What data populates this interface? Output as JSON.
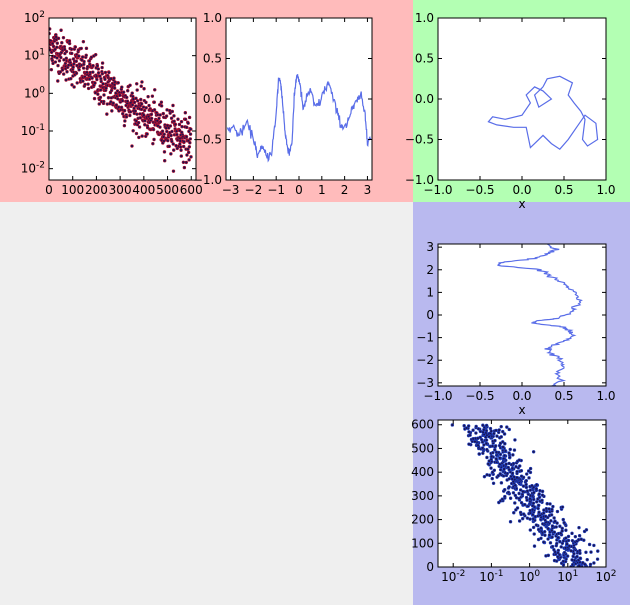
{
  "colors": {
    "panel_red": "#ffbbbb",
    "panel_green": "#b3ffb3",
    "panel_blue": "#b9b9ef",
    "background": "#efefef",
    "series_line": "#5a6ee8",
    "scatter_fill": "#1a1450",
    "scatter_edge_red": "#b01030",
    "scatter_edge_blue": "#2040c0"
  },
  "chart_data": [
    {
      "id": "scatter-log-y",
      "type": "scatter",
      "title": "",
      "xlabel": "",
      "ylabel": "",
      "xlim": [
        0,
        620
      ],
      "ylim": [
        0.005,
        100
      ],
      "yscale": "log",
      "x_ticks": [
        "0",
        "100",
        "200",
        "300",
        "400",
        "500",
        "600"
      ],
      "y_ticks": [
        "10^-2",
        "10^-1",
        "10^0",
        "10^1",
        "10^2"
      ],
      "description_of_trend": "y decays roughly exponentially with x",
      "curve": {
        "y_at_x0": 20,
        "decay_per_unit_x": 0.011,
        "floor": 0.03
      },
      "n_points": 600
    },
    {
      "id": "line-noisy",
      "type": "line",
      "title": "",
      "xlabel": "",
      "ylabel": "",
      "xlim": [
        -3.2,
        3.2
      ],
      "ylim": [
        -1.0,
        1.0
      ],
      "x_ticks": [
        "−3",
        "−2",
        "−1",
        "0",
        "1",
        "2",
        "3"
      ],
      "y_ticks": [
        "−1.0",
        "−0.5",
        "0.0",
        "0.5",
        "1.0"
      ],
      "x": [
        -3.14,
        -2.9,
        -2.6,
        -2.3,
        -2.0,
        -1.8,
        -1.6,
        -1.4,
        -1.2,
        -1.0,
        -0.9,
        -0.8,
        -0.7,
        -0.6,
        -0.5,
        -0.4,
        -0.3,
        -0.2,
        -0.1,
        0.0,
        0.1,
        0.2,
        0.35,
        0.5,
        0.7,
        0.9,
        1.1,
        1.3,
        1.5,
        1.7,
        1.9,
        2.1,
        2.3,
        2.5,
        2.7,
        2.9,
        3.0,
        3.14
      ],
      "y": [
        -0.38,
        -0.35,
        -0.45,
        -0.3,
        -0.48,
        -0.7,
        -0.6,
        -0.72,
        -0.65,
        -0.2,
        0.25,
        0.2,
        -0.1,
        -0.45,
        -0.6,
        -0.65,
        -0.5,
        0.05,
        0.3,
        0.25,
        0.05,
        -0.15,
        0.05,
        0.1,
        -0.1,
        -0.05,
        0.1,
        0.2,
        0.0,
        -0.2,
        -0.35,
        -0.3,
        -0.15,
        -0.05,
        0.05,
        -0.2,
        -0.5,
        -0.48
      ]
    },
    {
      "id": "xy-drawing",
      "type": "line",
      "title": "",
      "xlabel": "x",
      "ylabel": "",
      "xlim": [
        -1.0,
        1.0
      ],
      "ylim": [
        -1.0,
        1.0
      ],
      "x_ticks": [
        "−1.0",
        "−0.5",
        "0.0",
        "0.5",
        "1.0"
      ],
      "y_ticks": [
        "−1.0",
        "−0.5",
        "0.0",
        "0.5",
        "1.0"
      ],
      "x": [
        0.25,
        0.3,
        0.45,
        0.6,
        0.55,
        0.62,
        0.7,
        0.75,
        0.72,
        0.78,
        0.9,
        0.88,
        0.75,
        0.65,
        0.55,
        0.45,
        0.35,
        0.25,
        0.15,
        0.1,
        0.05,
        -0.1,
        -0.3,
        -0.4,
        -0.35,
        -0.2,
        0.0,
        0.1,
        0.05,
        0.15,
        0.25,
        0.35,
        0.2,
        0.15,
        0.25
      ],
      "y": [
        0.15,
        0.25,
        0.28,
        0.2,
        0.05,
        -0.05,
        -0.15,
        -0.25,
        -0.5,
        -0.58,
        -0.5,
        -0.3,
        -0.2,
        -0.35,
        -0.5,
        -0.62,
        -0.55,
        -0.45,
        -0.55,
        -0.6,
        -0.35,
        -0.35,
        -0.32,
        -0.28,
        -0.22,
        -0.25,
        -0.2,
        -0.05,
        0.05,
        0.15,
        0.1,
        0.0,
        -0.1,
        0.05,
        0.15
      ]
    },
    {
      "id": "line-vertical",
      "type": "line",
      "title": "",
      "xlabel": "x",
      "ylabel": "",
      "xlim": [
        -1.0,
        1.0
      ],
      "ylim": [
        -3.14,
        3.14
      ],
      "x_ticks": [
        "−1.0",
        "−0.5",
        "0.0",
        "0.5",
        "1.0"
      ],
      "y_ticks": [
        "−3",
        "−2",
        "−1",
        "0",
        "1",
        "2",
        "3"
      ],
      "x": [
        0.35,
        0.45,
        0.42,
        0.5,
        0.48,
        0.45,
        0.35,
        0.3,
        0.4,
        0.55,
        0.6,
        0.58,
        0.5,
        0.35,
        0.1,
        0.2,
        0.45,
        0.55,
        0.62,
        0.7,
        0.65,
        0.55,
        0.5,
        0.4,
        0.3,
        0.25,
        -0.3,
        -0.2,
        0.15,
        0.3,
        0.38,
        0.3
      ],
      "y": [
        -3.14,
        -2.9,
        -2.6,
        -2.3,
        -2.1,
        -1.9,
        -1.7,
        -1.5,
        -1.3,
        -1.1,
        -0.9,
        -0.7,
        -0.55,
        -0.45,
        -0.35,
        -0.25,
        -0.15,
        0.05,
        0.3,
        0.6,
        0.9,
        1.2,
        1.4,
        1.6,
        1.8,
        2.0,
        2.2,
        2.35,
        2.5,
        2.7,
        2.9,
        3.14
      ]
    },
    {
      "id": "scatter-log-x",
      "type": "scatter",
      "title": "",
      "xlabel": "",
      "ylabel": "",
      "xlim": [
        0.004,
        100
      ],
      "xscale": "log",
      "ylim": [
        0,
        620
      ],
      "x_ticks": [
        "10^-2",
        "10^-1",
        "10^0",
        "10^1",
        "10^2"
      ],
      "y_ticks": [
        "0",
        "100",
        "200",
        "300",
        "400",
        "500",
        "600"
      ],
      "description_of_trend": "transpose of scatter-log-y",
      "n_points": 600
    }
  ]
}
